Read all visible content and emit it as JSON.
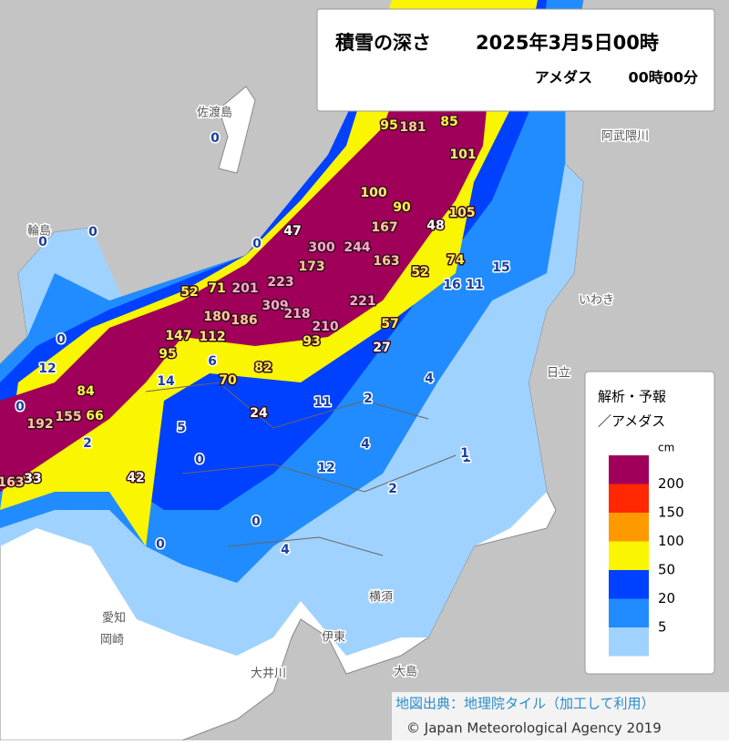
{
  "header": {
    "title": "積雪の深さ",
    "datetime": "2025年3月5日00時",
    "source": "アメダス",
    "obs_time": "00時00分"
  },
  "legend": {
    "title_1": "解析・予報",
    "title_2": "／アメダス",
    "unit": "cm",
    "colors": [
      "#a0005a",
      "#ff2800",
      "#ff9900",
      "#faf500",
      "#0041ff",
      "#218cff",
      "#a0d2ff"
    ],
    "labels": [
      200,
      150,
      100,
      50,
      20,
      5
    ]
  },
  "stations": [
    95,
    181,
    85,
    101,
    100,
    90,
    105,
    48,
    167,
    300,
    244,
    173,
    163,
    52,
    74,
    15,
    16,
    11,
    47,
    52,
    71,
    201,
    223,
    309,
    218,
    210,
    221,
    57,
    180,
    186,
    147,
    112,
    93,
    95,
    70,
    82,
    27,
    4,
    84,
    192,
    155,
    66,
    163,
    33,
    24,
    11,
    5,
    2,
    12,
    4,
    1,
    2,
    42,
    0,
    0,
    0,
    4,
    0,
    0,
    0,
    0,
    0,
    0,
    12,
    14,
    6,
    2,
    1
  ],
  "places": [
    "佐渡島",
    "輪島",
    "日立",
    "いわき",
    "横須",
    "伊東",
    "愛知",
    "岡崎",
    "大井川",
    "阿武隈川",
    "大島"
  ],
  "attribution": {
    "map_source": "地図出典：地理院タイル（加工して利用）",
    "copyright": "© Japan Meteorological Agency 2019"
  }
}
